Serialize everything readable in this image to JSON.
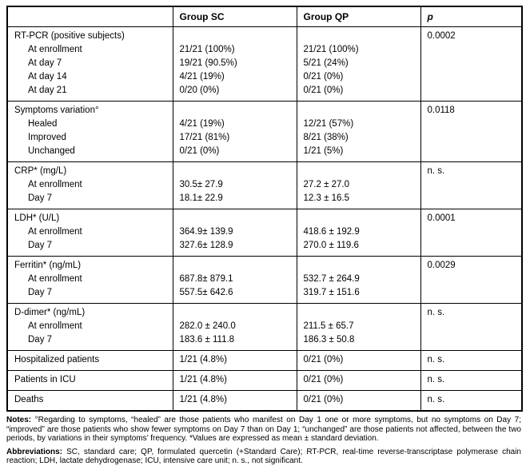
{
  "table": {
    "headers": [
      "",
      "Group SC",
      "Group QP",
      "p"
    ],
    "blocks": [
      {
        "label": "RT-PCR (positive subjects)",
        "p": "0.0002",
        "rows": [
          {
            "label": "At enrollment",
            "sc": "21/21 (100%)",
            "qp": "21/21 (100%)"
          },
          {
            "label": "At day 7",
            "sc": "19/21 (90.5%)",
            "qp": "5/21 (24%)"
          },
          {
            "label": "At day 14",
            "sc": "4/21 (19%)",
            "qp": "0/21 (0%)"
          },
          {
            "label": "At day 21",
            "sc": "0/20 (0%)",
            "qp": "0/21 (0%)"
          }
        ]
      },
      {
        "label": "Symptoms variation°",
        "p": "0.0118",
        "rows": [
          {
            "label": "Healed",
            "sc": "4/21 (19%)",
            "qp": "12/21 (57%)"
          },
          {
            "label": "Improved",
            "sc": "17/21 (81%)",
            "qp": "8/21 (38%)"
          },
          {
            "label": "Unchanged",
            "sc": "0/21 (0%)",
            "qp": "1/21 (5%)"
          }
        ]
      },
      {
        "label": "CRP* (mg/L)",
        "p": "n. s.",
        "rows": [
          {
            "label": "At enrollment",
            "sc": "30.5± 27.9",
            "qp": "27.2 ± 27.0"
          },
          {
            "label": "Day 7",
            "sc": "18.1± 22.9",
            "qp": "12.3 ± 16.5"
          }
        ]
      },
      {
        "label": "LDH* (U/L)",
        "p": "0.0001",
        "rows": [
          {
            "label": "At enrollment",
            "sc": "364.9± 139.9",
            "qp": "418.6 ± 192.9"
          },
          {
            "label": "Day 7",
            "sc": "327.6± 128.9",
            "qp": "270.0 ± 119.6"
          }
        ]
      },
      {
        "label": "Ferritin* (ng/mL)",
        "p": "0.0029",
        "rows": [
          {
            "label": "At enrollment",
            "sc": "687.8± 879.1",
            "qp": "532.7 ± 264.9"
          },
          {
            "label": "Day 7",
            "sc": "557.5± 642.6",
            "qp": "319.7 ± 151.6"
          }
        ]
      },
      {
        "label": "D-dimer* (ng/mL)",
        "p": "n. s.",
        "rows": [
          {
            "label": "At enrollment",
            "sc": "282.0 ± 240.0",
            "qp": "211.5 ± 65.7"
          },
          {
            "label": "Day 7",
            "sc": "183.6 ± 111.8",
            "qp": "186.3 ± 50.8"
          }
        ]
      },
      {
        "label": "Hospitalized patients",
        "sc": "1/21 (4.8%)",
        "qp": "0/21 (0%)",
        "p": "n. s.",
        "rows": []
      },
      {
        "label": "Patients in ICU",
        "sc": "1/21 (4.8%)",
        "qp": "0/21 (0%)",
        "p": "n. s.",
        "rows": []
      },
      {
        "label": "Deaths",
        "sc": "1/21 (4.8%)",
        "qp": "0/21 (0%)",
        "p": "n. s.",
        "rows": []
      }
    ]
  },
  "footer": {
    "notes_label": "Notes:",
    "notes_text": " °Regarding to symptoms, “healed” are those patients who manifest on Day 1 one or more symptoms, but no symptoms on Day 7; “improved” are those patients who show fewer symptoms on Day 7 than on Day 1; “unchanged” are those patients not affected, between the two periods, by variations in their symptoms’ frequency. *Values are expressed as mean ± standard deviation.",
    "abbreviations_label": "Abbreviations:",
    "abbreviations_text": " SC, standard care; QP, formulated quercetin (+Standard Care); RT-PCR, real-time reverse-transcriptase polymerase chain reaction; LDH, lactate dehydrogenase; ICU, intensive care unit; n. s., not significant."
  }
}
